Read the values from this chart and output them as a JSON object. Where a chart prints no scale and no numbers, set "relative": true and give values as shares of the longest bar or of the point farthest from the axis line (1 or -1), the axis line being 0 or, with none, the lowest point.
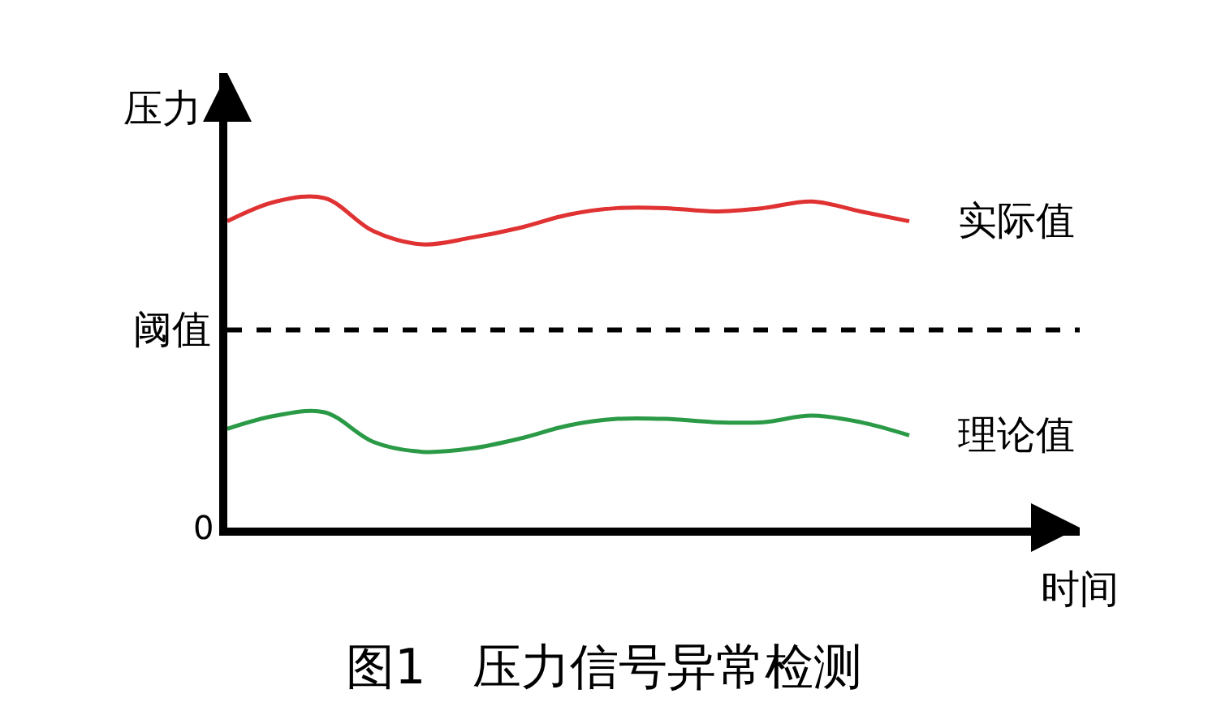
{
  "chart_data": {
    "type": "line",
    "title": "图1   压力信号异常检测",
    "xlabel": "时间",
    "ylabel": "压力",
    "relative": true,
    "categories": [
      null,
      null,
      null,
      null,
      null,
      null,
      null,
      null,
      null,
      null,
      null,
      null,
      null,
      null,
      null
    ],
    "series": [
      {
        "name": "实际值",
        "color": "#e03232",
        "values": [
          0.93,
          0.99,
          1.0,
          0.9,
          0.86,
          0.88,
          0.91,
          0.95,
          0.97,
          0.97,
          0.96,
          0.97,
          0.99,
          0.96,
          0.93
        ]
      },
      {
        "name": "理论值",
        "color": "#2a9a46",
        "values": [
          0.3,
          0.34,
          0.35,
          0.26,
          0.23,
          0.24,
          0.27,
          0.31,
          0.33,
          0.33,
          0.32,
          0.32,
          0.34,
          0.32,
          0.28
        ]
      }
    ],
    "ref_lines": [
      {
        "axis": "y",
        "value": 0.6,
        "label": "阈值",
        "color": "#000000",
        "line_style": "dashed"
      }
    ],
    "annotations": [
      "0"
    ],
    "line_style": "solid",
    "marker": "none",
    "grid": false,
    "legend": false
  }
}
